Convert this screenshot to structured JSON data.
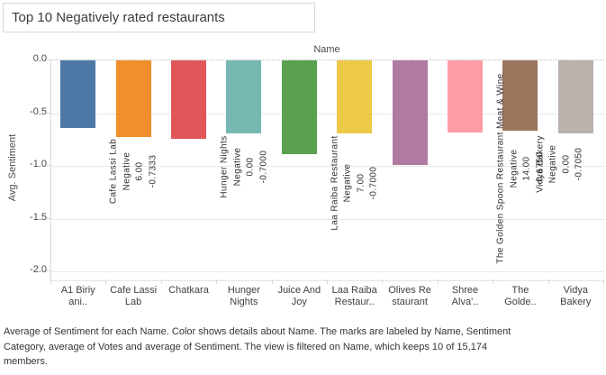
{
  "title": "Top 10 Negatively rated restaurants",
  "column_header": "Name",
  "y_axis_label": "Avg. Sentiment",
  "caption_lines": [
    "Average of Sentiment for each Name.  Color shows details about Name.  The marks are labeled by Name, Sentiment",
    "Category, average of Votes and average of Sentiment. The view is filtered on Name, which keeps 10 of 15,174",
    "members."
  ],
  "chart_data": {
    "type": "bar",
    "orientation": "vertical",
    "title": "Top 10 Negatively rated restaurants",
    "xlabel": "Name",
    "ylabel": "Avg. Sentiment",
    "ylim": [
      -2.0,
      0.0
    ],
    "grid": true,
    "y_ticks": [
      {
        "label": "0.0",
        "value": 0.0
      },
      {
        "label": "-0.5",
        "value": -0.5
      },
      {
        "label": "-1.0",
        "value": -1.0
      },
      {
        "label": "-1.5",
        "value": -1.5
      },
      {
        "label": "-2.0",
        "value": -2.0
      }
    ],
    "bars": [
      {
        "category": "A1 Biriyani..",
        "tick_lines": [
          "A1 Biriy",
          "ani.."
        ],
        "value": -0.65,
        "color": "#4e79a7",
        "mark_label": null
      },
      {
        "category": "Cafe Lassi Lab",
        "tick_lines": [
          "Cafe Lassi",
          "Lab"
        ],
        "value": -0.7333,
        "color": "#f28e2b",
        "mark_label": [
          "Cafe Lassi Lab",
          "Negative",
          "6.00",
          "-0.7333"
        ]
      },
      {
        "category": "Chatkara",
        "tick_lines": [
          "Chatkara"
        ],
        "value": -0.75,
        "color": "#e15759",
        "mark_label": null
      },
      {
        "category": "Hunger Nights",
        "tick_lines": [
          "Hunger",
          "Nights"
        ],
        "value": -0.7,
        "color": "#76b7b2",
        "mark_label": [
          "Hunger Nights",
          "Negative",
          "0.00",
          "-0.7000"
        ]
      },
      {
        "category": "Juice And Joy",
        "tick_lines": [
          "Juice And",
          "Joy"
        ],
        "value": -0.9,
        "color": "#59a14f",
        "mark_label": null
      },
      {
        "category": "Laa Raiba Restaur..",
        "tick_lines": [
          "Laa Raiba",
          "Restaur.."
        ],
        "value": -0.7,
        "color": "#edc948",
        "mark_label": [
          "Laa Raiba Restaurant",
          "Negative",
          "7.00",
          "-0.7000"
        ]
      },
      {
        "category": "Olives Restaurant",
        "tick_lines": [
          "Olives Re",
          "staurant"
        ],
        "value": -1.0,
        "color": "#b07aa1",
        "mark_label": null
      },
      {
        "category": "Shree Alva'..",
        "tick_lines": [
          "Shree",
          "Alva'.."
        ],
        "value": -0.69,
        "color": "#ff9da7",
        "mark_label": null
      },
      {
        "category": "The Golde..",
        "tick_lines": [
          "The",
          "Golde.."
        ],
        "value": -0.675,
        "color": "#9c755f",
        "mark_label": [
          "The Golden Spoon Restaurant Meat & Wine",
          "Negative",
          "14.00",
          "-0.6750"
        ]
      },
      {
        "category": "Vidya Bakery",
        "tick_lines": [
          "Vidya",
          "Bakery"
        ],
        "value": -0.705,
        "color": "#bab0ac",
        "mark_label": [
          "Vidya Bakery",
          "Negative",
          "0.00",
          "-0.7050"
        ]
      }
    ]
  }
}
